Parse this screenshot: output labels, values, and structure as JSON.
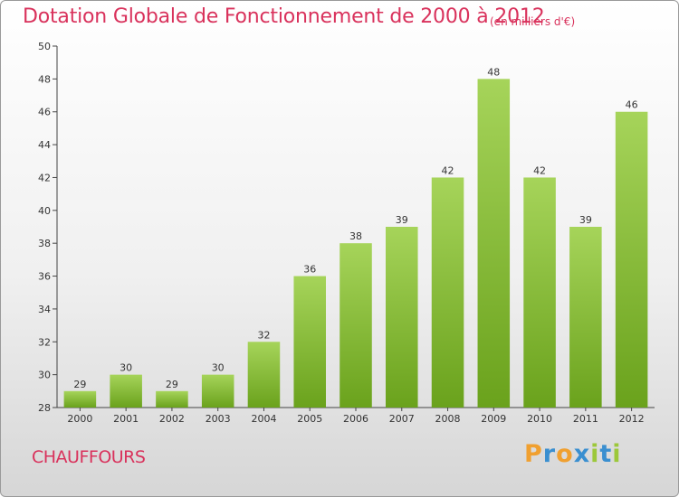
{
  "chart_data": {
    "type": "bar",
    "title": "Dotation Globale de Fonctionnement de 2000 à 2012",
    "subtitle": "(en milliers d'€)",
    "categories": [
      "2000",
      "2001",
      "2002",
      "2003",
      "2004",
      "2005",
      "2006",
      "2007",
      "2008",
      "2009",
      "2010",
      "2011",
      "2012"
    ],
    "values": [
      29,
      30,
      29,
      30,
      32,
      36,
      38,
      39,
      42,
      48,
      42,
      39,
      46
    ],
    "xlabel": "",
    "ylabel": "",
    "ylim": [
      28,
      50
    ],
    "yticks": [
      28,
      30,
      32,
      34,
      36,
      38,
      40,
      42,
      44,
      46,
      48,
      50
    ],
    "grid": false,
    "bar_color_top": "#a6d45a",
    "bar_color_bottom": "#6aa21c"
  },
  "footer": {
    "town": "CHAUFFOURS",
    "logo": [
      "P",
      "r",
      "o",
      "x",
      "i",
      "t",
      "i"
    ],
    "logo_colors": [
      "#f0a030",
      "#3a8fd0",
      "#f0a030",
      "#3a8fd0",
      "#9cc83a",
      "#3a8fd0",
      "#9cc83a"
    ]
  },
  "colors": {
    "title": "#d9325c",
    "axis": "#444444"
  }
}
